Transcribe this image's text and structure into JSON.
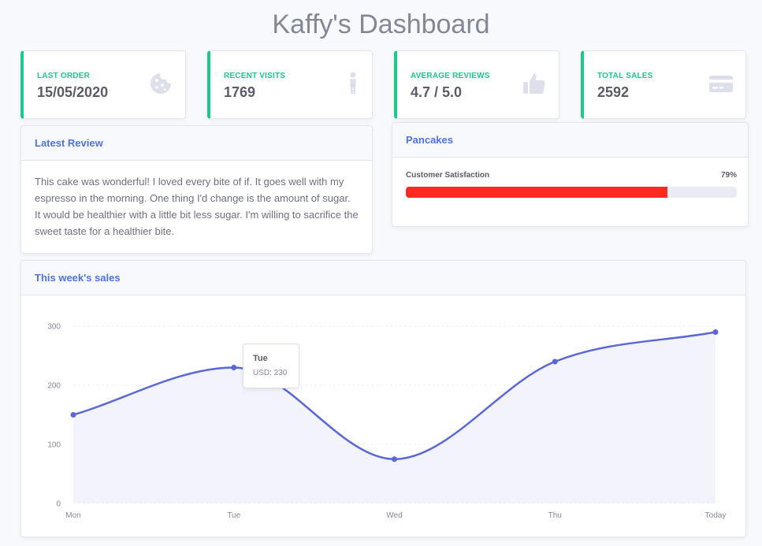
{
  "page": {
    "title": "Kaffy's Dashboard"
  },
  "stats": [
    {
      "label": "LAST ORDER",
      "value": "15/05/2020",
      "icon": "cookie-icon"
    },
    {
      "label": "RECENT VISITS",
      "value": "1769",
      "icon": "person-icon"
    },
    {
      "label": "AVERAGE REVIEWS",
      "value": "4.7 / 5.0",
      "icon": "thumbs-up-icon"
    },
    {
      "label": "TOTAL SALES",
      "value": "2592",
      "icon": "credit-card-icon"
    }
  ],
  "review": {
    "title": "Latest Review",
    "text": "This cake was wonderful! I loved every bite of if. It goes well with my espresso in the morning. One thing I'd change is the amount of sugar. It would be healthier with a little bit less sugar. I'm willing to sacrifice the sweet taste for a healthier bite."
  },
  "product": {
    "title": "Pancakes",
    "metric_label": "Customer Satisfaction",
    "percent_label": "79%",
    "percent": 79,
    "bar_color": "#ff2a1f"
  },
  "sales": {
    "title": "This week's sales",
    "tooltip": {
      "title": "Tue",
      "text": "USD: 230"
    }
  },
  "chart_data": {
    "type": "area",
    "title": "",
    "categories": [
      "Mon",
      "Tue",
      "Wed",
      "Thu",
      "Today"
    ],
    "series": [
      {
        "values": [
          150,
          230,
          75,
          240,
          290
        ]
      }
    ],
    "ylim": [
      0,
      300
    ],
    "yticks": [
      0,
      100,
      200,
      300
    ],
    "grid": true,
    "line_color": "#5a67d8",
    "fill_color": "#f3f4fb"
  }
}
